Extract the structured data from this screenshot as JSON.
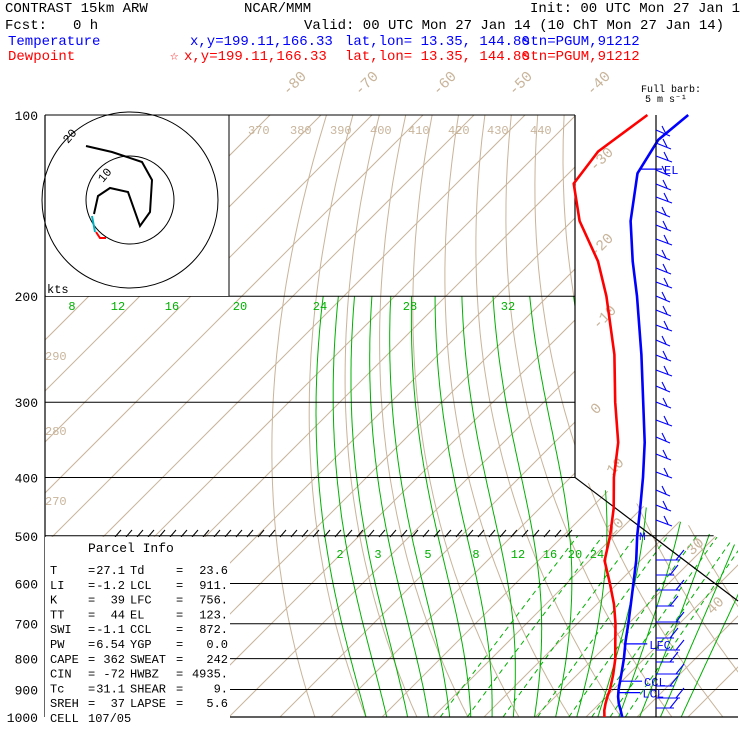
{
  "header": {
    "model": "CONTRAST 15km ARW",
    "source": "NCAR/MMM",
    "init": "Init: 00 UTC Mon 27 Jan 14",
    "fcst_label": "Fcst:",
    "fcst_value": "0 h",
    "valid": "Valid: 00 UTC Mon 27 Jan 14 (10 ChT Mon 27 Jan 14)",
    "temperature": {
      "label": "Temperature",
      "xy": "x,y=199.11,166.33",
      "latlon": "lat,lon= 13.35, 144.80",
      "stn": "stn=PGUM,91212",
      "color": "#0000ff"
    },
    "dewpoint": {
      "label": "Dewpoint",
      "star": "☆",
      "xy": "x,y=199.11,166.33",
      "latlon": "lat,lon= 13.35, 144.80",
      "stn": "stn=PGUM,91212",
      "color": "#ff0000"
    }
  },
  "barb_header": {
    "line1": "Full barb:",
    "line2": "5 m s⁻¹"
  },
  "hodograph": {
    "units": "kts",
    "ring_labels": [
      "10",
      "20"
    ]
  },
  "parcel": {
    "title": "Parcel Info",
    "rows": [
      {
        "k1": "T",
        "v1": "27.1",
        "k2": "Td",
        "v2": "23.6"
      },
      {
        "k1": "LI",
        "v1": "-1.2",
        "k2": "LCL",
        "v2": "911."
      },
      {
        "k1": "K",
        "v1": "39",
        "k2": "LFC",
        "v2": "756."
      },
      {
        "k1": "TT",
        "v1": "44",
        "k2": "EL",
        "v2": "123."
      },
      {
        "k1": "SWI",
        "v1": "-1.1",
        "k2": "CCL",
        "v2": "872."
      },
      {
        "k1": "PW",
        "v1": "6.54",
        "k2": "YGP",
        "v2": "0.0"
      },
      {
        "k1": "CAPE",
        "v1": "362",
        "k2": "SWEAT",
        "v2": "242"
      },
      {
        "k1": "CIN",
        "v1": "-72",
        "k2": "HWBZ",
        "v2": "4935."
      },
      {
        "k1": "Tc",
        "v1": "31.1",
        "k2": "SHEAR",
        "v2": "9."
      },
      {
        "k1": "SREH",
        "v1": "37",
        "k2": "LAPSE",
        "v2": "5.6"
      },
      {
        "k1": "CELL",
        "v1": "107/05",
        "k2": "",
        "v2": ""
      }
    ]
  },
  "chart_data": {
    "type": "line",
    "diagram": "skew-T log-p",
    "y_axis_pressure_hPa": [
      100,
      200,
      300,
      400,
      500,
      600,
      700,
      800,
      900,
      1000
    ],
    "isotherm_labels_C": [
      "-80",
      "-70",
      "-60",
      "-50",
      "-40",
      "-30",
      "-20",
      "-10",
      "0",
      "10",
      "20",
      "30",
      "40"
    ],
    "isotherm_values_C": [
      -80,
      -70,
      -60,
      -50,
      -40,
      -30,
      -20,
      -10,
      0,
      10,
      20,
      30,
      40
    ],
    "theta_labels_K": [
      "270",
      "280",
      "290",
      "370",
      "380",
      "390",
      "400",
      "410",
      "420",
      "430",
      "440"
    ],
    "mixing_ratio_upper_labels": [
      "8",
      "12",
      "16",
      "20",
      "24",
      "28",
      "32"
    ],
    "mixing_ratio_lower_labels": [
      "2",
      "3",
      "5",
      "8",
      "12",
      "16",
      "20",
      "24"
    ],
    "levels_labels": {
      "el": "EL",
      "lfc": "LFC",
      "ccl": "CCL",
      "lcl": "LCL",
      "mark_500": "M"
    },
    "series": [
      {
        "name": "Temperature",
        "color": "#0000ff",
        "points": [
          [
            1000,
            27.1
          ],
          [
            975,
            25.5
          ],
          [
            950,
            23.8
          ],
          [
            925,
            22.3
          ],
          [
            900,
            21.0
          ],
          [
            850,
            18.6
          ],
          [
            800,
            16.0
          ],
          [
            750,
            13.0
          ],
          [
            700,
            10.0
          ],
          [
            650,
            6.7
          ],
          [
            600,
            3.1
          ],
          [
            550,
            -0.8
          ],
          [
            500,
            -5.5
          ],
          [
            450,
            -10.3
          ],
          [
            400,
            -15.8
          ],
          [
            350,
            -22.3
          ],
          [
            300,
            -30.5
          ],
          [
            250,
            -40.2
          ],
          [
            200,
            -52.5
          ],
          [
            175,
            -60.2
          ],
          [
            150,
            -68.5
          ],
          [
            125,
            -76.5
          ],
          [
            110,
            -79.0
          ],
          [
            100,
            -78.0
          ]
        ]
      },
      {
        "name": "Dewpoint",
        "color": "#ff0000",
        "points": [
          [
            1000,
            23.6
          ],
          [
            975,
            22.3
          ],
          [
            950,
            21.2
          ],
          [
            925,
            20.2
          ],
          [
            900,
            19.3
          ],
          [
            850,
            17.0
          ],
          [
            800,
            14.3
          ],
          [
            750,
            11.0
          ],
          [
            700,
            7.5
          ],
          [
            650,
            3.4
          ],
          [
            600,
            -1.5
          ],
          [
            550,
            -7.0
          ],
          [
            500,
            -10.8
          ],
          [
            450,
            -15.5
          ],
          [
            400,
            -21.5
          ],
          [
            350,
            -27.5
          ],
          [
            300,
            -36.0
          ],
          [
            250,
            -45.5
          ],
          [
            200,
            -58.5
          ],
          [
            175,
            -67.0
          ],
          [
            150,
            -78.5
          ],
          [
            130,
            -87.0
          ],
          [
            115,
            -88.5
          ],
          [
            100,
            -86.0
          ]
        ]
      }
    ]
  }
}
